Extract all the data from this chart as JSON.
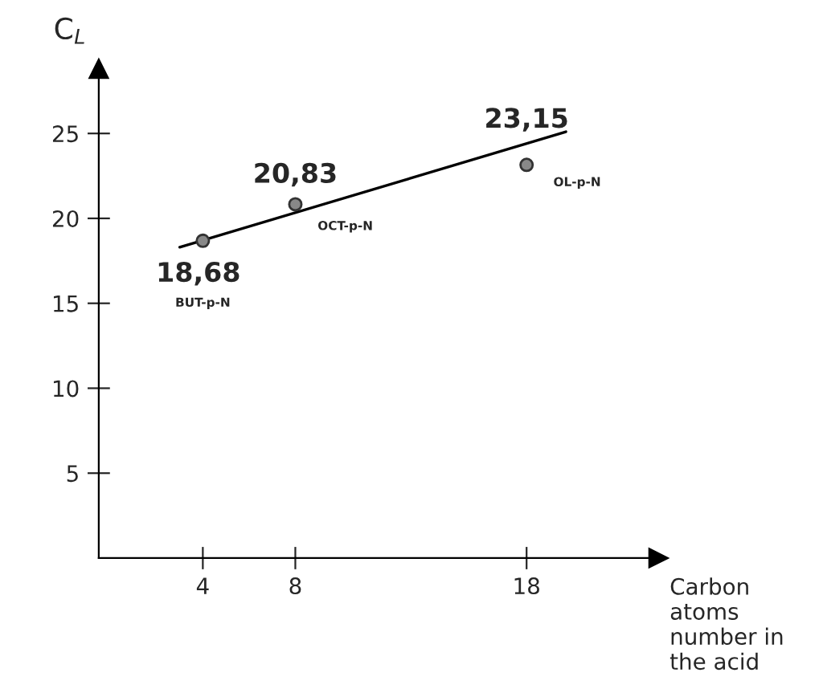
{
  "chart_data": {
    "type": "scatter",
    "xlabel": "Carbon atoms number in the acid",
    "ylabel": "C$_{L}$",
    "x": [
      4,
      8,
      18
    ],
    "series": [
      {
        "color": "#888888",
        "values": [
          18.68,
          20.83,
          23.15
        ],
        "value_labels": [
          "18,68",
          "20,83",
          "23,15"
        ]
      },
      {
        "type": "line",
        "color": "#000000",
        "x": [
          3.0,
          19.7
        ],
        "values": [
          18.3,
          25.1
        ],
        "marker": "none"
      }
    ],
    "annotations": [
      "BUT-p-N",
      "OCT-p-N",
      "OL-p-N"
    ],
    "marker": "circle",
    "xlim": [
      -0.5,
      23.7
    ],
    "ylim": [
      0,
      28.8
    ],
    "xticks": [
      4,
      8,
      18
    ],
    "yticks": [
      5,
      10,
      15,
      20,
      25
    ],
    "grid": false,
    "legend": false
  }
}
